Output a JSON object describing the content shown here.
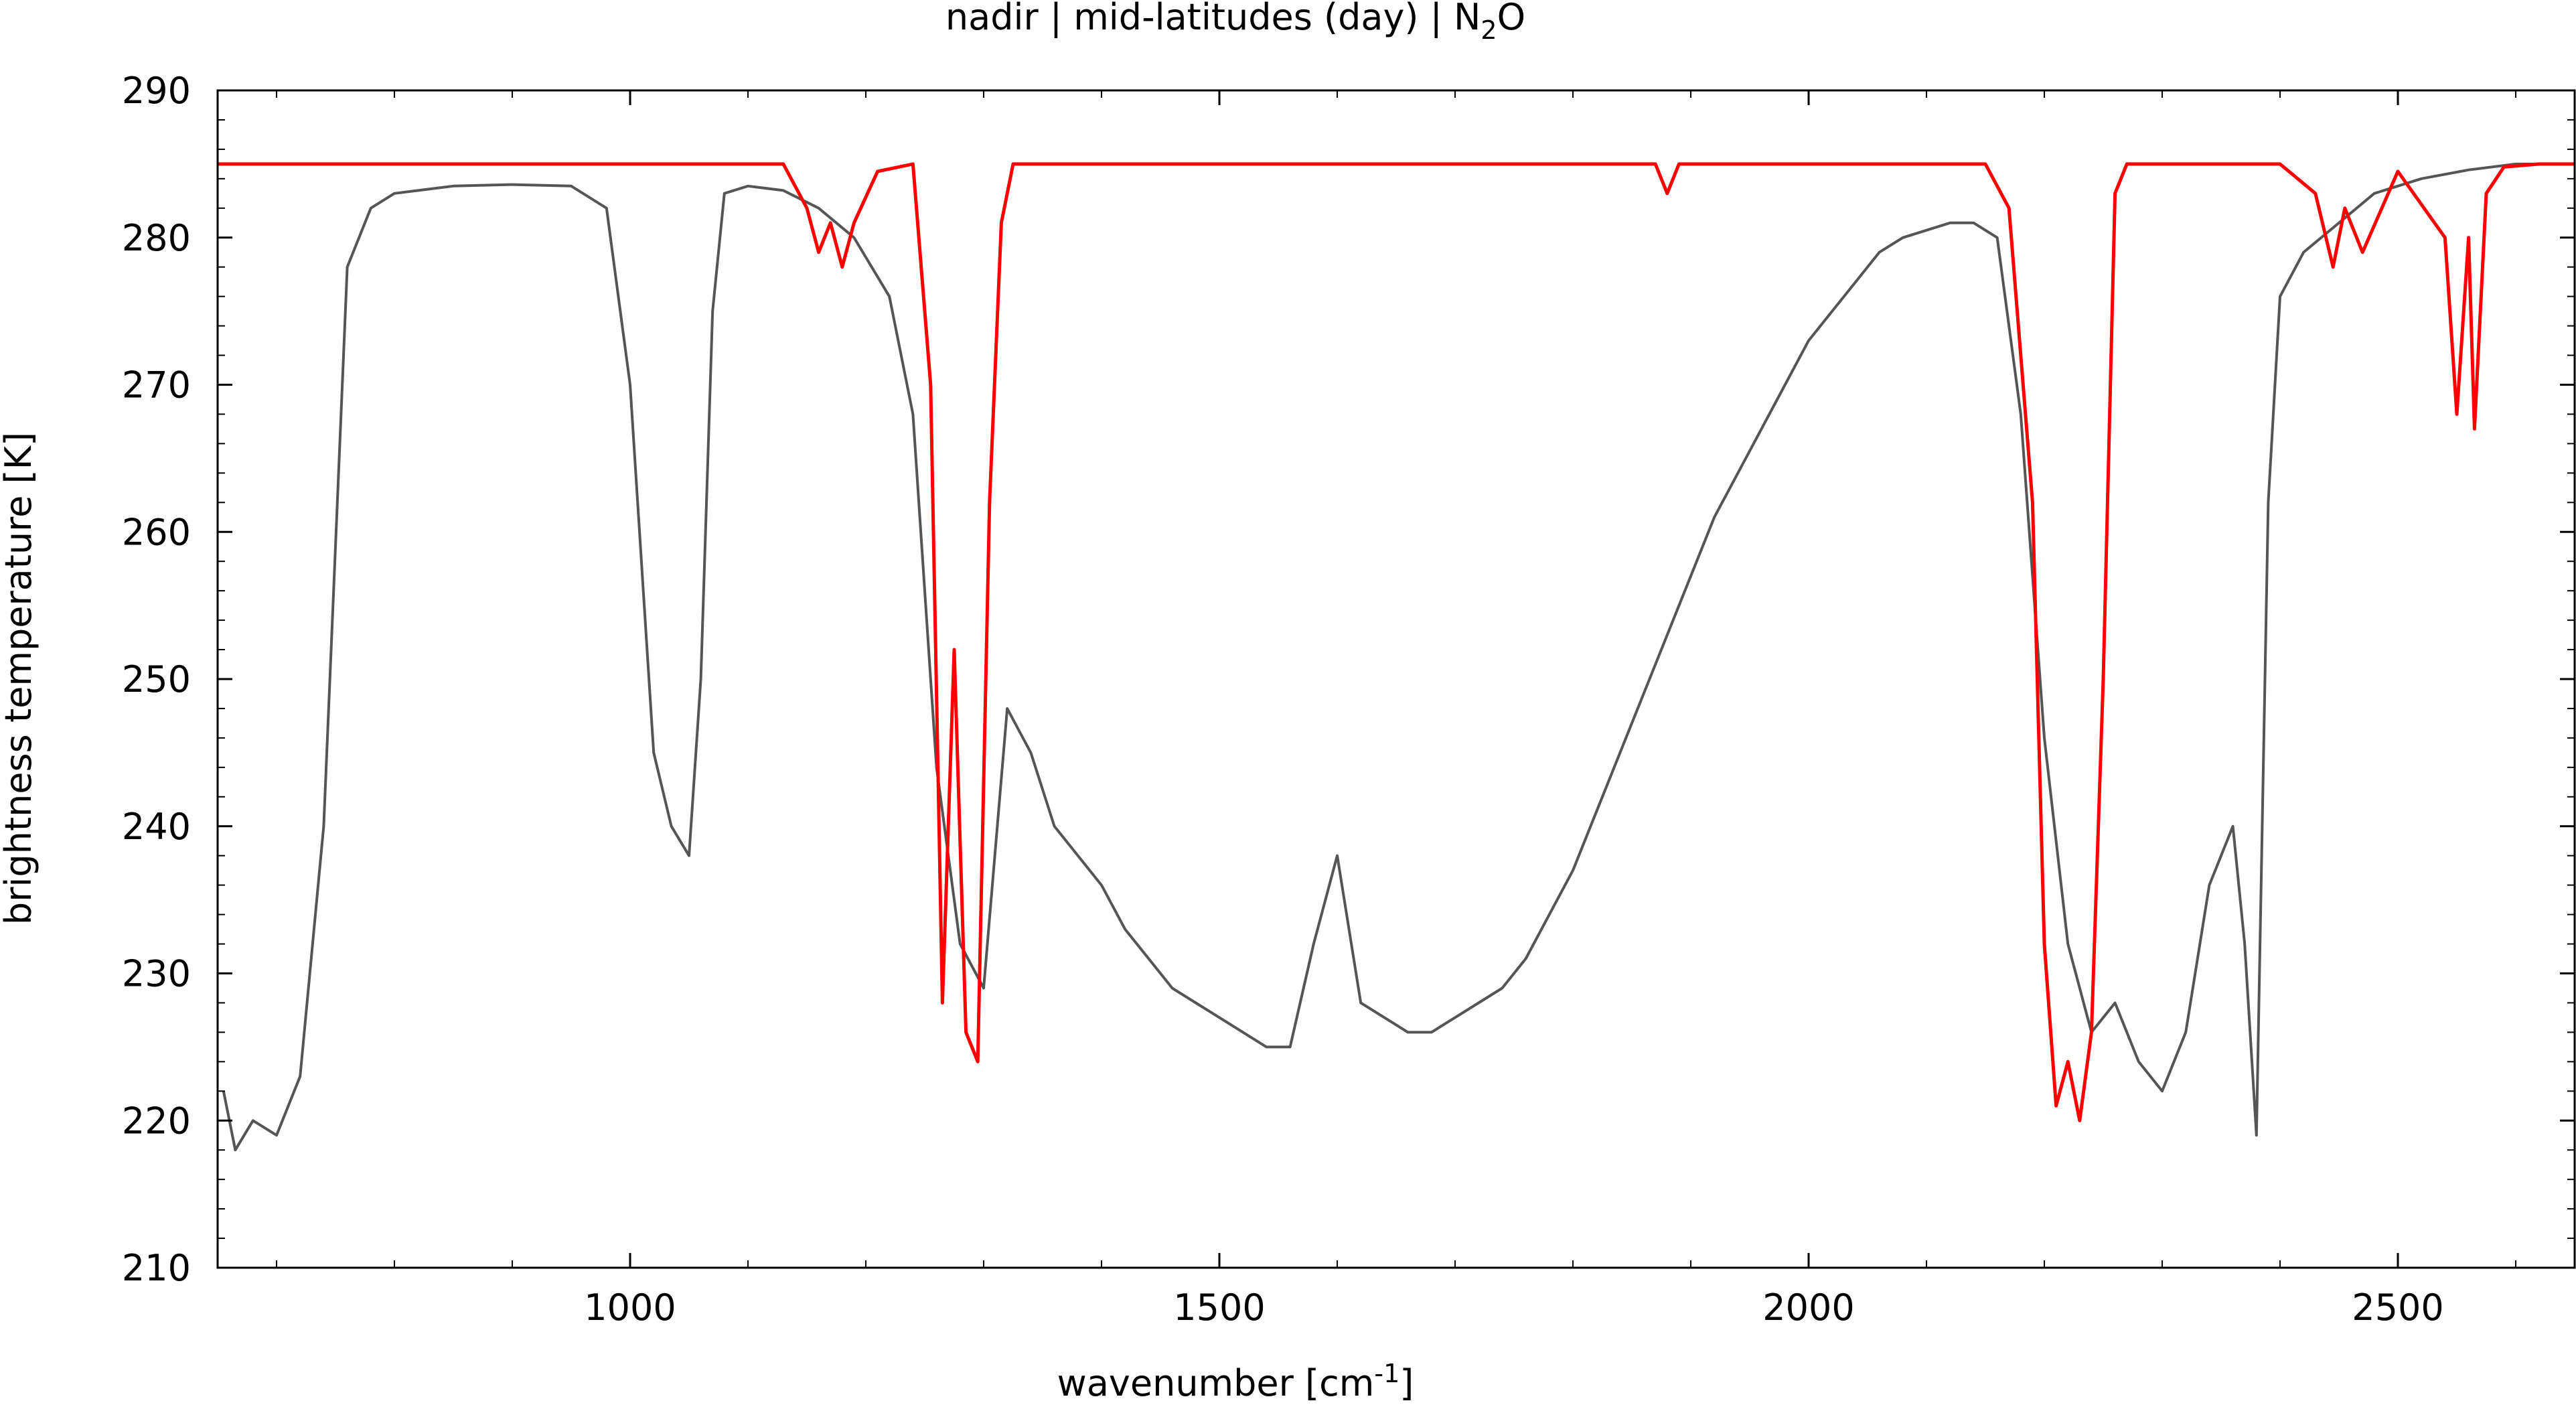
{
  "chart_data": {
    "type": "line",
    "title": "nadir | mid-latitudes (day) | N",
    "title_subscript": "2",
    "title_suffix": "O",
    "xlabel": "wavenumber [cm",
    "xlabel_superscript": "-1",
    "xlabel_suffix": "]",
    "ylabel": "brightness temperature [K]",
    "xlim": [
      650,
      2650
    ],
    "ylim": [
      210,
      290
    ],
    "xticks": [
      1000,
      1500,
      2000,
      2500
    ],
    "yticks": [
      210,
      220,
      230,
      240,
      250,
      260,
      270,
      280,
      290
    ],
    "grid": false,
    "legend": "none",
    "series": [
      {
        "color": "#555555",
        "x": [
          655,
          665,
          680,
          700,
          720,
          740,
          760,
          780,
          800,
          850,
          900,
          950,
          980,
          1000,
          1020,
          1035,
          1050,
          1060,
          1070,
          1080,
          1100,
          1130,
          1160,
          1190,
          1220,
          1240,
          1260,
          1280,
          1300,
          1320,
          1340,
          1360,
          1380,
          1400,
          1420,
          1440,
          1460,
          1480,
          1500,
          1520,
          1540,
          1560,
          1580,
          1600,
          1620,
          1640,
          1660,
          1680,
          1700,
          1720,
          1740,
          1760,
          1780,
          1800,
          1820,
          1840,
          1860,
          1880,
          1900,
          1920,
          1940,
          1960,
          1980,
          2000,
          2020,
          2040,
          2060,
          2080,
          2100,
          2120,
          2140,
          2160,
          2180,
          2200,
          2220,
          2240,
          2260,
          2280,
          2300,
          2320,
          2340,
          2360,
          2370,
          2380,
          2390,
          2400,
          2420,
          2450,
          2480,
          2520,
          2560,
          2600,
          2640
        ],
        "y": [
          222,
          218,
          220,
          219,
          223,
          240,
          278,
          282,
          283,
          283.5,
          283.6,
          283.5,
          282,
          270,
          245,
          240,
          238,
          250,
          275,
          283,
          283.5,
          283.2,
          282,
          280,
          276,
          268,
          244,
          232,
          229,
          248,
          245,
          240,
          238,
          236,
          233,
          231,
          229,
          228,
          227,
          226,
          225,
          225,
          232,
          238,
          228,
          227,
          226,
          226,
          227,
          228,
          229,
          231,
          234,
          237,
          241,
          245,
          249,
          253,
          257,
          261,
          264,
          267,
          270,
          273,
          275,
          277,
          279,
          280,
          280.5,
          281,
          281,
          280,
          268,
          246,
          232,
          226,
          228,
          224,
          222,
          226,
          236,
          240,
          232,
          219,
          262,
          276,
          279,
          281,
          283,
          284,
          284.6,
          285,
          285
        ]
      },
      {
        "color": "#ff0000",
        "x": [
          650,
          1130,
          1150,
          1160,
          1170,
          1180,
          1190,
          1210,
          1240,
          1255,
          1265,
          1275,
          1285,
          1295,
          1305,
          1315,
          1325,
          1400,
          1870,
          1880,
          1890,
          2150,
          2170,
          2190,
          2200,
          2210,
          2220,
          2230,
          2240,
          2250,
          2260,
          2270,
          2400,
          2430,
          2445,
          2455,
          2470,
          2500,
          2540,
          2550,
          2560,
          2565,
          2575,
          2590,
          2620,
          2650
        ],
        "y": [
          285,
          285,
          282,
          279,
          281,
          278,
          281,
          284.5,
          285,
          270,
          228,
          252,
          226,
          224,
          262,
          281,
          285,
          285,
          285,
          283,
          285,
          285,
          282,
          262,
          232,
          221,
          224,
          220,
          226,
          250,
          283,
          285,
          285,
          283,
          278,
          282,
          279,
          284.5,
          280,
          268,
          280,
          267,
          283,
          284.8,
          285,
          285
        ]
      }
    ]
  }
}
